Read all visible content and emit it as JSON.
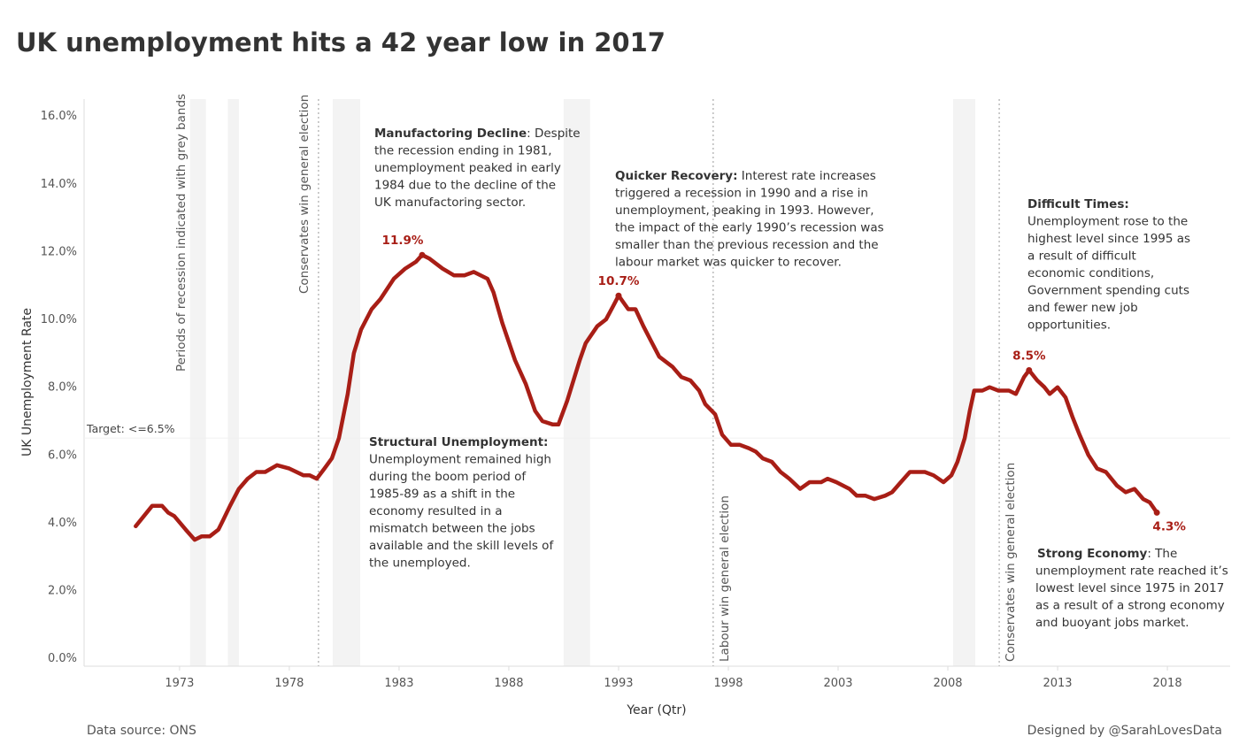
{
  "chart_data": {
    "type": "line",
    "title": "UK unemployment hits a 42 year low in 2017",
    "xlabel": "Year (Qtr)",
    "ylabel": "UK Unemployment Rate",
    "source": "Data source: ONS",
    "credit": "Designed by @SarahLovesData",
    "xlim": [
      1968.65,
      2020.86
    ],
    "xticks": [
      1973,
      1978,
      1983,
      1988,
      1993,
      1998,
      2003,
      2008,
      2013,
      2018
    ],
    "ylim": [
      -0.23,
      16.5
    ],
    "yticks": [
      {
        "value": 0,
        "label": "0.0%"
      },
      {
        "value": 2,
        "label": "2.0%"
      },
      {
        "value": 4,
        "label": "4.0%"
      },
      {
        "value": 6,
        "label": "6.0%"
      },
      {
        "value": 8,
        "label": "8.0%"
      },
      {
        "value": 10,
        "label": "10.0%"
      },
      {
        "value": 12,
        "label": "12.0%"
      },
      {
        "value": 14,
        "label": "14.0%"
      },
      {
        "value": 16,
        "label": "16.0%"
      }
    ],
    "grid": false,
    "series": [
      {
        "name": "UK Unemployment Rate",
        "color": "#a81e16",
        "x": [
          1971.0,
          1971.75,
          1972.2,
          1972.48,
          1972.76,
          1973.28,
          1973.69,
          1974.0,
          1974.37,
          1974.77,
          1975.0,
          1975.3,
          1975.7,
          1976.1,
          1976.5,
          1976.9,
          1977.44,
          1978.0,
          1978.65,
          1978.93,
          1979.25,
          1979.6,
          1979.94,
          1980.26,
          1980.66,
          1980.94,
          1981.27,
          1981.75,
          1982.15,
          1982.76,
          1983.28,
          1983.77,
          1984.05,
          1984.37,
          1984.98,
          1985.5,
          1985.98,
          1986.4,
          1987.03,
          1987.3,
          1987.7,
          1988.28,
          1988.77,
          1989.2,
          1989.53,
          1990.0,
          1990.26,
          1990.66,
          1991.23,
          1991.5,
          1992.03,
          1992.43,
          1992.76,
          1993.0,
          1993.44,
          1993.77,
          1994.13,
          1994.53,
          1994.85,
          1995.46,
          1995.86,
          1996.27,
          1996.67,
          1996.95,
          1997.4,
          1997.72,
          1998.12,
          1998.52,
          1998.93,
          1999.25,
          1999.57,
          1999.98,
          2000.38,
          2000.78,
          2001.27,
          2001.7,
          2002.23,
          2002.52,
          2002.92,
          2003.52,
          2003.85,
          2004.25,
          2004.65,
          2005.14,
          2005.46,
          2005.86,
          2006.27,
          2006.95,
          2007.35,
          2007.8,
          2008.16,
          2008.44,
          2008.77,
          2009.0,
          2009.2,
          2009.57,
          2009.9,
          2010.3,
          2010.78,
          2011.1,
          2011.47,
          2011.7,
          2012.07,
          2012.4,
          2012.64,
          2013.0,
          2013.36,
          2013.69,
          2014.0,
          2014.4,
          2014.8,
          2015.2,
          2015.7,
          2016.1,
          2016.5,
          2016.9,
          2017.2,
          2017.52
        ],
        "values": [
          3.9,
          4.5,
          4.5,
          4.3,
          4.2,
          3.8,
          3.5,
          3.6,
          3.6,
          3.8,
          4.1,
          4.5,
          5.0,
          5.3,
          5.5,
          5.5,
          5.7,
          5.6,
          5.4,
          5.4,
          5.3,
          5.6,
          5.9,
          6.5,
          7.8,
          9.0,
          9.7,
          10.3,
          10.6,
          11.2,
          11.5,
          11.7,
          11.9,
          11.8,
          11.5,
          11.3,
          11.3,
          11.4,
          11.2,
          10.8,
          9.9,
          8.8,
          8.1,
          7.3,
          7.0,
          6.9,
          6.9,
          7.6,
          8.8,
          9.3,
          9.8,
          10.0,
          10.4,
          10.7,
          10.3,
          10.3,
          9.8,
          9.3,
          8.9,
          8.6,
          8.3,
          8.2,
          7.9,
          7.5,
          7.2,
          6.6,
          6.3,
          6.3,
          6.2,
          6.1,
          5.9,
          5.8,
          5.5,
          5.3,
          5.0,
          5.2,
          5.2,
          5.3,
          5.2,
          5.0,
          4.8,
          4.8,
          4.7,
          4.8,
          4.9,
          5.2,
          5.5,
          5.5,
          5.4,
          5.2,
          5.4,
          5.8,
          6.5,
          7.3,
          7.9,
          7.9,
          8.0,
          7.9,
          7.9,
          7.8,
          8.3,
          8.5,
          8.2,
          8.0,
          7.8,
          8.0,
          7.7,
          7.1,
          6.6,
          6.0,
          5.6,
          5.5,
          5.1,
          4.9,
          5.0,
          4.7,
          4.6,
          4.3
        ]
      }
    ],
    "point_labels": [
      {
        "x": 1984.05,
        "y": 11.9,
        "label": "11.9%"
      },
      {
        "x": 1993.0,
        "y": 10.7,
        "label": "10.7%"
      },
      {
        "x": 2011.7,
        "y": 8.5,
        "label": "8.5%"
      },
      {
        "x": 2017.52,
        "y": 4.3,
        "label": "4.3%"
      }
    ],
    "bands": [
      [
        1973.48,
        1974.2
      ],
      [
        1975.2,
        1975.7
      ],
      [
        1979.98,
        1981.23
      ],
      [
        1990.5,
        1991.7
      ],
      [
        2008.24,
        2009.25
      ]
    ],
    "band_label": "Periods of recession indicated with grey bands",
    "vlines": [
      {
        "x": 1979.33,
        "label": "Conservates win general election"
      },
      {
        "x": 1997.31,
        "label": "Labour win general election"
      },
      {
        "x": 2010.34,
        "label": "Conservates win general election"
      }
    ],
    "target": {
      "value": 6.5,
      "label": "Target: <=6.5%"
    },
    "annotations": [
      {
        "title": "Manufactoring Decline",
        "lines": [
          ": Despite",
          "the recession ending in 1981,",
          "unemployment peaked in early",
          "1984 due to the decline of the",
          "UK manufactoring sector."
        ]
      },
      {
        "title": "Quicker Recovery:",
        "lines": [
          " Interest rate increases",
          "triggered a recession in 1990 and a rise in",
          "unemployment, peaking in 1993. However,",
          "the impact of the early 1990’s recession was",
          "smaller than the previous recession and the",
          "labour market was quicker to recover."
        ]
      },
      {
        "title": "Difficult Times:",
        "lines": [
          "",
          "Unemployment rose to the",
          "highest level since 1995 as",
          "a result of difficult",
          "economic conditions,",
          "Government spending cuts",
          "and fewer new job",
          "opportunities."
        ]
      },
      {
        "title": "Structural Unemployment:",
        "lines": [
          "",
          "Unemployment remained high",
          "during the boom period of",
          "1985-89 as a shift in the",
          "economy resulted in a",
          "mismatch between the jobs",
          "available and the skill levels of",
          "the unemployed."
        ]
      },
      {
        "title": "Strong Economy",
        "lines": [
          ": The",
          "unemployment rate reached it’s",
          "lowest level since 1975 in 2017",
          "as a result of a strong economy",
          "and buoyant jobs market."
        ]
      }
    ]
  }
}
